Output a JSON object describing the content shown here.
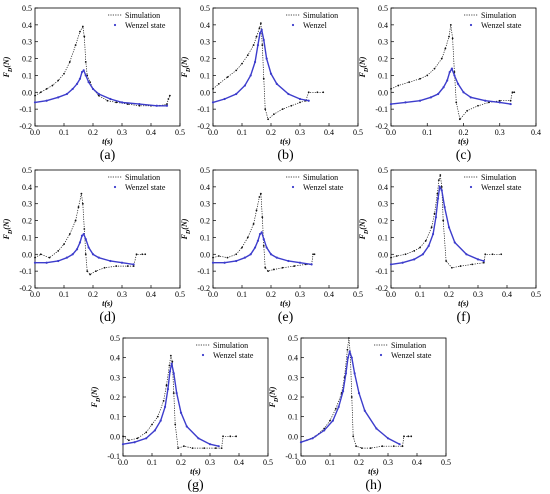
{
  "figure": {
    "colors": {
      "simulation": "#111111",
      "wenzel": "#3d3dcc",
      "axis": "#000000"
    }
  },
  "chart_data": [
    {
      "panel_label": "(a)",
      "type": "line",
      "xlabel": "t(s)",
      "ylabel": "FD(N)",
      "xlim": [
        0,
        0.5
      ],
      "ylim": [
        -0.2,
        0.5
      ],
      "xticks": [
        "0.0",
        "0.1",
        "0.2",
        "0.3",
        "0.4",
        "0.5"
      ],
      "yticks": [
        "-0.2",
        "-0.1",
        "0.0",
        "0.1",
        "0.2",
        "0.3",
        "0.4",
        "0.5"
      ],
      "legend_position": "top-right",
      "series": [
        {
          "name": "Simulation",
          "style": "dotted-black",
          "x": [
            0.0,
            0.02,
            0.04,
            0.06,
            0.08,
            0.1,
            0.12,
            0.14,
            0.155,
            0.165,
            0.17,
            0.175,
            0.18,
            0.19,
            0.2,
            0.22,
            0.25,
            0.28,
            0.32,
            0.36,
            0.4,
            0.43,
            0.455,
            0.46,
            0.465
          ],
          "y": [
            -0.02,
            0.0,
            0.02,
            0.04,
            0.07,
            0.11,
            0.18,
            0.28,
            0.36,
            0.39,
            0.33,
            0.18,
            0.1,
            0.06,
            0.02,
            -0.02,
            -0.05,
            -0.06,
            -0.07,
            -0.08,
            -0.08,
            -0.08,
            -0.07,
            -0.04,
            -0.02
          ]
        },
        {
          "name": "Wenzel state",
          "style": "blue-dots",
          "x": [
            0.0,
            0.04,
            0.08,
            0.11,
            0.13,
            0.145,
            0.155,
            0.162,
            0.168,
            0.175,
            0.185,
            0.2,
            0.22,
            0.26,
            0.3,
            0.36,
            0.42,
            0.455
          ],
          "y": [
            -0.06,
            -0.05,
            -0.03,
            -0.01,
            0.02,
            0.05,
            0.08,
            0.12,
            0.13,
            0.1,
            0.06,
            0.02,
            -0.01,
            -0.04,
            -0.06,
            -0.07,
            -0.08,
            -0.08
          ]
        }
      ]
    },
    {
      "panel_label": "(b)",
      "type": "line",
      "xlabel": "t(s)",
      "ylabel": "FD(N)",
      "xlim": [
        0,
        0.5
      ],
      "ylim": [
        -0.2,
        0.5
      ],
      "xticks": [
        "0.0",
        "0.1",
        "0.2",
        "0.3",
        "0.4",
        "0.5"
      ],
      "yticks": [
        "-0.2",
        "-0.1",
        "0.0",
        "0.1",
        "0.2",
        "0.3",
        "0.4",
        "0.5"
      ],
      "legend_position": "top-right",
      "series": [
        {
          "name": "Simulation",
          "style": "dotted-black",
          "x": [
            0.0,
            0.02,
            0.05,
            0.08,
            0.1,
            0.12,
            0.14,
            0.15,
            0.16,
            0.165,
            0.17,
            0.175,
            0.18,
            0.19,
            0.21,
            0.24,
            0.27,
            0.3,
            0.32,
            0.33,
            0.36,
            0.38
          ],
          "y": [
            0.02,
            0.05,
            0.09,
            0.13,
            0.17,
            0.22,
            0.28,
            0.33,
            0.38,
            0.41,
            0.28,
            0.08,
            -0.1,
            -0.16,
            -0.13,
            -0.1,
            -0.08,
            -0.06,
            -0.05,
            0.0,
            0.0,
            0.0
          ]
        },
        {
          "name": "Wenzel",
          "style": "blue-dots",
          "x": [
            0.0,
            0.04,
            0.08,
            0.11,
            0.13,
            0.145,
            0.155,
            0.162,
            0.168,
            0.175,
            0.185,
            0.2,
            0.22,
            0.26,
            0.3,
            0.33
          ],
          "y": [
            -0.06,
            -0.04,
            -0.01,
            0.04,
            0.1,
            0.18,
            0.28,
            0.35,
            0.37,
            0.31,
            0.2,
            0.11,
            0.05,
            -0.01,
            -0.04,
            -0.05
          ]
        }
      ]
    },
    {
      "panel_label": "(c)",
      "type": "line",
      "xlabel": "t(s)",
      "ylabel": "FD(N)",
      "xlim": [
        0,
        0.4
      ],
      "ylim": [
        -0.2,
        0.5
      ],
      "xticks": [
        "0.0",
        "0.1",
        "0.2",
        "0.3",
        "0.4"
      ],
      "yticks": [
        "-0.2",
        "-0.1",
        "0.0",
        "0.1",
        "0.2",
        "0.3",
        "0.4",
        "0.5"
      ],
      "legend_position": "top-right",
      "series": [
        {
          "name": "Simulation",
          "style": "dotted-black",
          "x": [
            0.0,
            0.02,
            0.05,
            0.08,
            0.1,
            0.12,
            0.14,
            0.15,
            0.16,
            0.165,
            0.17,
            0.175,
            0.18,
            0.19,
            0.21,
            0.24,
            0.27,
            0.3,
            0.33,
            0.335,
            0.34
          ],
          "y": [
            0.02,
            0.04,
            0.06,
            0.08,
            0.1,
            0.14,
            0.2,
            0.26,
            0.33,
            0.4,
            0.32,
            0.12,
            -0.06,
            -0.16,
            -0.11,
            -0.08,
            -0.06,
            -0.05,
            -0.05,
            0.0,
            0.0
          ]
        },
        {
          "name": "Wenzel state",
          "style": "blue-dots",
          "x": [
            0.0,
            0.04,
            0.08,
            0.11,
            0.13,
            0.145,
            0.155,
            0.162,
            0.168,
            0.175,
            0.185,
            0.2,
            0.22,
            0.26,
            0.3,
            0.33
          ],
          "y": [
            -0.07,
            -0.06,
            -0.05,
            -0.03,
            -0.01,
            0.03,
            0.07,
            0.12,
            0.14,
            0.1,
            0.05,
            0.0,
            -0.03,
            -0.05,
            -0.06,
            -0.07
          ]
        }
      ]
    },
    {
      "panel_label": "(d)",
      "type": "line",
      "xlabel": "t(s)",
      "ylabel": "FD(N)",
      "xlim": [
        0,
        0.5
      ],
      "ylim": [
        -0.2,
        0.5
      ],
      "xticks": [
        "0.0",
        "0.1",
        "0.2",
        "0.3",
        "0.4",
        "0.5"
      ],
      "yticks": [
        "-0.2",
        "-0.1",
        "0.0",
        "0.1",
        "0.2",
        "0.3",
        "0.4",
        "0.5"
      ],
      "legend_position": "top-right",
      "series": [
        {
          "name": "Simulation",
          "style": "dotted-black",
          "x": [
            0.0,
            0.02,
            0.05,
            0.08,
            0.1,
            0.12,
            0.14,
            0.15,
            0.16,
            0.165,
            0.17,
            0.175,
            0.18,
            0.19,
            0.21,
            0.24,
            0.28,
            0.32,
            0.34,
            0.35,
            0.37,
            0.38
          ],
          "y": [
            -0.02,
            0.0,
            -0.02,
            0.02,
            0.06,
            0.12,
            0.2,
            0.28,
            0.36,
            0.3,
            0.15,
            0.0,
            -0.1,
            -0.12,
            -0.1,
            -0.08,
            -0.07,
            -0.07,
            -0.07,
            0.0,
            0.0,
            0.0
          ]
        },
        {
          "name": "Wenzel state",
          "style": "blue-dots",
          "x": [
            0.0,
            0.04,
            0.08,
            0.11,
            0.13,
            0.145,
            0.155,
            0.162,
            0.168,
            0.175,
            0.185,
            0.2,
            0.22,
            0.26,
            0.3,
            0.34
          ],
          "y": [
            -0.05,
            -0.05,
            -0.04,
            -0.02,
            0.0,
            0.03,
            0.07,
            0.11,
            0.12,
            0.09,
            0.04,
            0.0,
            -0.02,
            -0.04,
            -0.05,
            -0.06
          ]
        }
      ]
    },
    {
      "panel_label": "(e)",
      "type": "line",
      "xlabel": "t(s)",
      "ylabel": "FD(N)",
      "xlim": [
        0,
        0.5
      ],
      "ylim": [
        -0.2,
        0.5
      ],
      "xticks": [
        "0.0",
        "0.1",
        "0.2",
        "0.3",
        "0.4",
        "0.5"
      ],
      "yticks": [
        "-0.2",
        "-0.1",
        "0.0",
        "0.1",
        "0.2",
        "0.3",
        "0.4",
        "0.5"
      ],
      "legend_position": "top-right",
      "series": [
        {
          "name": "Simulation",
          "style": "dotted-black",
          "x": [
            0.0,
            0.02,
            0.05,
            0.08,
            0.1,
            0.12,
            0.14,
            0.15,
            0.16,
            0.165,
            0.17,
            0.175,
            0.18,
            0.19,
            0.21,
            0.24,
            0.28,
            0.32,
            0.34,
            0.345,
            0.35
          ],
          "y": [
            -0.02,
            -0.01,
            -0.02,
            0.0,
            0.04,
            0.1,
            0.18,
            0.26,
            0.34,
            0.36,
            0.22,
            0.05,
            -0.08,
            -0.1,
            -0.09,
            -0.08,
            -0.07,
            -0.06,
            -0.06,
            0.0,
            0.0
          ]
        },
        {
          "name": "Wenzel state",
          "style": "blue-dots",
          "x": [
            0.0,
            0.04,
            0.08,
            0.11,
            0.13,
            0.145,
            0.155,
            0.162,
            0.168,
            0.175,
            0.185,
            0.2,
            0.22,
            0.26,
            0.3,
            0.34
          ],
          "y": [
            -0.05,
            -0.05,
            -0.04,
            -0.02,
            0.0,
            0.04,
            0.08,
            0.12,
            0.13,
            0.09,
            0.04,
            0.0,
            -0.02,
            -0.04,
            -0.05,
            -0.06
          ]
        }
      ]
    },
    {
      "panel_label": "(f)",
      "type": "line",
      "xlabel": "t(s)",
      "ylabel": "FD(N)",
      "xlim": [
        0,
        0.5
      ],
      "ylim": [
        -0.2,
        0.5
      ],
      "xticks": [
        "0.0",
        "0.1",
        "0.2",
        "0.3",
        "0.4",
        "0.5"
      ],
      "yticks": [
        "-0.2",
        "-0.1",
        "0.0",
        "0.1",
        "0.2",
        "0.3",
        "0.4",
        "0.5"
      ],
      "legend_position": "top-right",
      "series": [
        {
          "name": "Simulation",
          "style": "dotted-black",
          "x": [
            0.0,
            0.02,
            0.05,
            0.08,
            0.1,
            0.12,
            0.14,
            0.15,
            0.16,
            0.165,
            0.17,
            0.175,
            0.18,
            0.19,
            0.21,
            0.24,
            0.28,
            0.32,
            0.325,
            0.35,
            0.38
          ],
          "y": [
            -0.02,
            -0.01,
            0.0,
            0.02,
            0.04,
            0.08,
            0.16,
            0.24,
            0.36,
            0.44,
            0.47,
            0.4,
            0.2,
            -0.04,
            -0.08,
            -0.07,
            -0.06,
            -0.05,
            0.0,
            0.0,
            0.0
          ]
        },
        {
          "name": "Wenzel state",
          "style": "blue-dots",
          "x": [
            0.0,
            0.04,
            0.08,
            0.11,
            0.13,
            0.145,
            0.155,
            0.162,
            0.168,
            0.175,
            0.185,
            0.2,
            0.22,
            0.26,
            0.3,
            0.32
          ],
          "y": [
            -0.06,
            -0.05,
            -0.03,
            0.0,
            0.05,
            0.12,
            0.22,
            0.33,
            0.4,
            0.38,
            0.28,
            0.16,
            0.07,
            0.0,
            -0.03,
            -0.04
          ]
        }
      ]
    },
    {
      "panel_label": "(g)",
      "type": "line",
      "xlabel": "t(s)",
      "ylabel": "FD(N)",
      "xlim": [
        0,
        0.5
      ],
      "ylim": [
        -0.1,
        0.5
      ],
      "xticks": [
        "0.0",
        "0.1",
        "0.2",
        "0.3",
        "0.4",
        "0.5"
      ],
      "yticks": [
        "-0.1",
        "0.0",
        "0.1",
        "0.2",
        "0.3",
        "0.4",
        "0.5"
      ],
      "legend_position": "top-right",
      "series": [
        {
          "name": "Simulation",
          "style": "dotted-black",
          "x": [
            0.0,
            0.02,
            0.05,
            0.08,
            0.1,
            0.12,
            0.14,
            0.15,
            0.16,
            0.165,
            0.17,
            0.175,
            0.18,
            0.19,
            0.21,
            0.24,
            0.28,
            0.32,
            0.34,
            0.345,
            0.37,
            0.39
          ],
          "y": [
            0.0,
            -0.02,
            -0.01,
            0.02,
            0.06,
            0.1,
            0.18,
            0.26,
            0.36,
            0.41,
            0.38,
            0.22,
            0.06,
            -0.06,
            -0.05,
            -0.06,
            -0.06,
            -0.06,
            -0.06,
            0.0,
            0.0,
            0.0
          ]
        },
        {
          "name": "Wenzel state",
          "style": "blue-dots",
          "x": [
            0.0,
            0.04,
            0.08,
            0.11,
            0.13,
            0.145,
            0.155,
            0.162,
            0.168,
            0.175,
            0.185,
            0.2,
            0.22,
            0.26,
            0.3,
            0.33
          ],
          "y": [
            -0.04,
            -0.03,
            -0.01,
            0.03,
            0.08,
            0.15,
            0.24,
            0.33,
            0.37,
            0.32,
            0.22,
            0.12,
            0.05,
            -0.01,
            -0.04,
            -0.05
          ]
        }
      ]
    },
    {
      "panel_label": "(h)",
      "type": "line",
      "xlabel": "t(s)",
      "ylabel": "FD(N)",
      "xlim": [
        0,
        0.5
      ],
      "ylim": [
        -0.1,
        0.5
      ],
      "xticks": [
        "0.0",
        "0.1",
        "0.2",
        "0.3",
        "0.4",
        "0.5"
      ],
      "yticks": [
        "-0.1",
        "0.0",
        "0.1",
        "0.2",
        "0.3",
        "0.4",
        "0.5"
      ],
      "legend_position": "top-right",
      "series": [
        {
          "name": "Simulation",
          "style": "dotted-black",
          "x": [
            0.0,
            0.02,
            0.05,
            0.08,
            0.1,
            0.12,
            0.14,
            0.15,
            0.16,
            0.165,
            0.17,
            0.175,
            0.18,
            0.19,
            0.21,
            0.24,
            0.28,
            0.32,
            0.35,
            0.355,
            0.37,
            0.38
          ],
          "y": [
            -0.03,
            -0.02,
            0.0,
            0.04,
            0.08,
            0.14,
            0.22,
            0.3,
            0.44,
            0.5,
            0.42,
            0.2,
            0.0,
            -0.05,
            -0.06,
            -0.06,
            -0.05,
            -0.05,
            -0.05,
            0.0,
            0.0,
            0.0
          ]
        },
        {
          "name": "Wenzel state",
          "style": "blue-dots",
          "x": [
            0.0,
            0.04,
            0.08,
            0.11,
            0.13,
            0.145,
            0.155,
            0.162,
            0.168,
            0.175,
            0.185,
            0.2,
            0.22,
            0.26,
            0.3,
            0.34
          ],
          "y": [
            -0.03,
            -0.01,
            0.03,
            0.08,
            0.15,
            0.23,
            0.32,
            0.4,
            0.43,
            0.4,
            0.32,
            0.22,
            0.13,
            0.04,
            -0.01,
            -0.04
          ]
        }
      ]
    }
  ]
}
